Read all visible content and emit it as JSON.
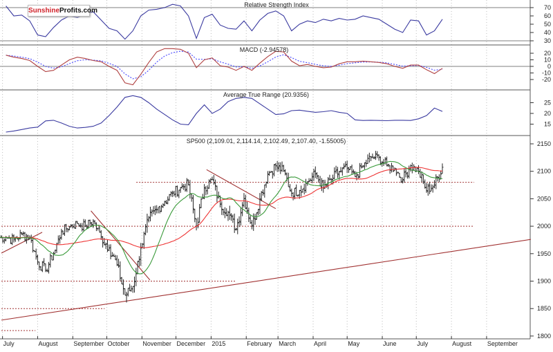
{
  "logo": {
    "part1": "Sunshine",
    "part2": "Profits.com"
  },
  "panels": {
    "rsi_title": "Relative Strength Index",
    "macd_title": "MACD (-2.94578)",
    "atr_title": "Average True Range (20.9356)",
    "price_title": "SP500 (2,109.01, 2,114.14, 2,102.49, 2,107.40, -1.55005)"
  },
  "colors": {
    "price_bars": "#222222",
    "ma_short": "#3a9a3a",
    "ma_long": "#ee3333",
    "rsi": "#3a3aa0",
    "macd": "#b04040",
    "signal": "#4444ff",
    "atr": "#3a3aa0",
    "annotation": "#a03030",
    "grid": "#bbbbbb"
  },
  "chart_data": [
    {
      "type": "line",
      "title": "Relative Strength Index",
      "ylim": [
        25,
        80
      ],
      "ticks": [
        70,
        60,
        50,
        40,
        30
      ],
      "reference_lines": [
        70,
        30
      ],
      "series": [
        {
          "values": [
            72,
            60,
            61,
            54,
            37,
            35,
            46,
            55,
            60,
            58,
            62,
            65,
            55,
            45,
            42,
            32,
            42,
            60,
            67,
            68,
            70,
            74,
            72,
            60,
            33,
            58,
            62,
            49,
            45,
            44,
            54,
            42,
            55,
            63,
            66,
            60,
            42,
            50,
            54,
            52,
            56,
            54,
            57,
            55,
            56,
            60,
            58,
            56,
            50,
            44,
            40,
            55,
            54,
            37,
            42,
            56
          ]
        }
      ]
    },
    {
      "type": "line",
      "title": "MACD (-2.94578)",
      "ylim": [
        -32,
        32
      ],
      "ticks": [
        20,
        10,
        0,
        -10,
        -20
      ],
      "series": [
        {
          "values": [
            17,
            14,
            12,
            9,
            0,
            -8,
            -6,
            2,
            10,
            14,
            12,
            9,
            7,
            0,
            -6,
            -25,
            -28,
            -12,
            6,
            22,
            27,
            27,
            26,
            20,
            -2,
            10,
            13,
            1,
            -1,
            -6,
            0,
            -6,
            5,
            15,
            23,
            22,
            8,
            1,
            3,
            0,
            -2,
            -1,
            4,
            7,
            7,
            8,
            7,
            6,
            4,
            0,
            -3,
            2,
            2,
            -5,
            -11,
            -2.95
          ]
        }
      ]
    },
    {
      "type": "line",
      "title": "Average True Range (20.9356)",
      "ticks": [
        25,
        20,
        15
      ],
      "series": [
        {
          "values": [
            11.3,
            11.8,
            12.5,
            13.2,
            13.6,
            16.5,
            16.8,
            15.5,
            14,
            13.2,
            13.5,
            14,
            15.5,
            19,
            23,
            27.5,
            28.3,
            27.5,
            25,
            22,
            19.5,
            17,
            15,
            14.7,
            20,
            24,
            20,
            22,
            25.5,
            27,
            27.5,
            27,
            24.5,
            22,
            19.5,
            19.8,
            21.3,
            21.5,
            21,
            20.5,
            20.8,
            21.3,
            20.5,
            20,
            17,
            16.7,
            16.8,
            16.7,
            16.6,
            16.8,
            16.8,
            16.7,
            17.5,
            19,
            22.5,
            20.94
          ]
        }
      ]
    },
    {
      "type": "bar",
      "title": "SP500 (2,109.01, 2,114.14, 2,102.49, 2,107.40, -1.55005)",
      "ylim": [
        1800,
        2150
      ],
      "ticks": [
        2150,
        2100,
        2050,
        2000,
        1950,
        1900,
        1850,
        1800
      ],
      "x_labels": [
        "July",
        "August",
        "September",
        "October",
        "November",
        "December",
        "2015",
        "February",
        "March",
        "April",
        "May",
        "June",
        "July",
        "August",
        "September"
      ],
      "x_label_dates": [
        "2014-07-01",
        "2014-08-01",
        "2014-09-01",
        "2014-10-01",
        "2014-11-01",
        "2014-12-01",
        "2015-01-01",
        "2015-02-01",
        "2015-03-01",
        "2015-04-01",
        "2015-05-01",
        "2015-06-01",
        "2015-07-01",
        "2015-08-01",
        "2015-09-01"
      ],
      "first_week_ending": "2014-07-04",
      "weekly_close": [
        1980,
        1975,
        1985,
        1980,
        1935,
        1920,
        1950,
        1990,
        2000,
        2005,
        2000,
        2010,
        1980,
        1960,
        1930,
        1875,
        1890,
        1960,
        2015,
        2030,
        2045,
        2060,
        2070,
        2075,
        2000,
        2070,
        2085,
        2040,
        2025,
        1995,
        2050,
        2000,
        2050,
        2095,
        2110,
        2100,
        2060,
        2065,
        2080,
        2095,
        2070,
        2085,
        2100,
        2105,
        2090,
        2110,
        2125,
        2125,
        2110,
        2105,
        2085,
        2110,
        2100,
        2065,
        2075,
        2107.4
      ],
      "last_bar": {
        "open": 2109.01,
        "high": 2114.14,
        "low": 2102.49,
        "close": 2107.4,
        "change": -1.55005
      },
      "horizontal_levels": [
        {
          "price": 2080,
          "from": "2014-10-27",
          "to": "2015-08-21"
        },
        {
          "price": 2000,
          "from": "2014-06-30",
          "to": "2015-08-21"
        },
        {
          "price": 1900,
          "from": "2014-06-30",
          "to": "2015-01-23"
        },
        {
          "price": 1850,
          "from": "2014-06-30",
          "to": "2014-09-29"
        },
        {
          "price": 1810,
          "from": "2014-06-30",
          "to": "2014-07-30"
        }
      ],
      "trendlines": [
        {
          "from": [
            "2014-06-30",
            1829
          ],
          "to": [
            "2015-10-10",
            1976
          ]
        },
        {
          "from": [
            "2014-06-30",
            1951
          ],
          "to": [
            "2014-08-05",
            1989
          ]
        },
        {
          "from": [
            "2014-09-17",
            2028
          ],
          "to": [
            "2014-11-08",
            1902
          ]
        },
        {
          "from": [
            "2014-12-28",
            2103
          ],
          "to": [
            "2015-02-27",
            2032
          ]
        }
      ]
    }
  ]
}
